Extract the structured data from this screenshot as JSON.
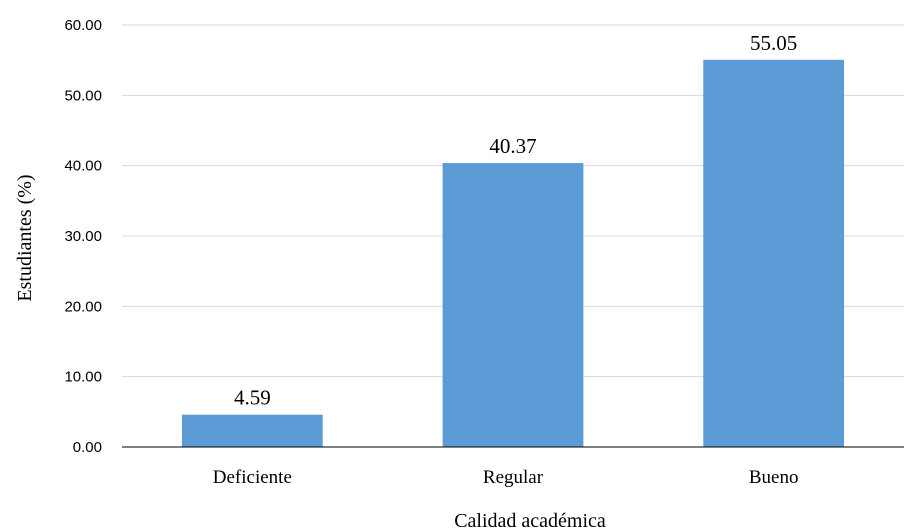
{
  "chart_data": {
    "type": "bar",
    "categories": [
      "Deficiente",
      "Regular",
      "Bueno"
    ],
    "values": [
      4.59,
      40.37,
      55.05
    ],
    "data_labels": [
      "4.59",
      "40.37",
      "55.05"
    ],
    "xlabel": "Calidad académica",
    "ylabel": "Estudiantes  (%)",
    "ylim": [
      0,
      60
    ],
    "yticks": [
      0,
      10,
      20,
      30,
      40,
      50,
      60
    ],
    "ytick_labels": [
      "0.00",
      "10.00",
      "20.00",
      "30.00",
      "40.00",
      "50.00",
      "60.00"
    ],
    "grid": true,
    "legend": "none",
    "colors": {
      "bar": "#5b9bd5",
      "grid": "#d9d9d9",
      "axis": "#000000"
    }
  }
}
